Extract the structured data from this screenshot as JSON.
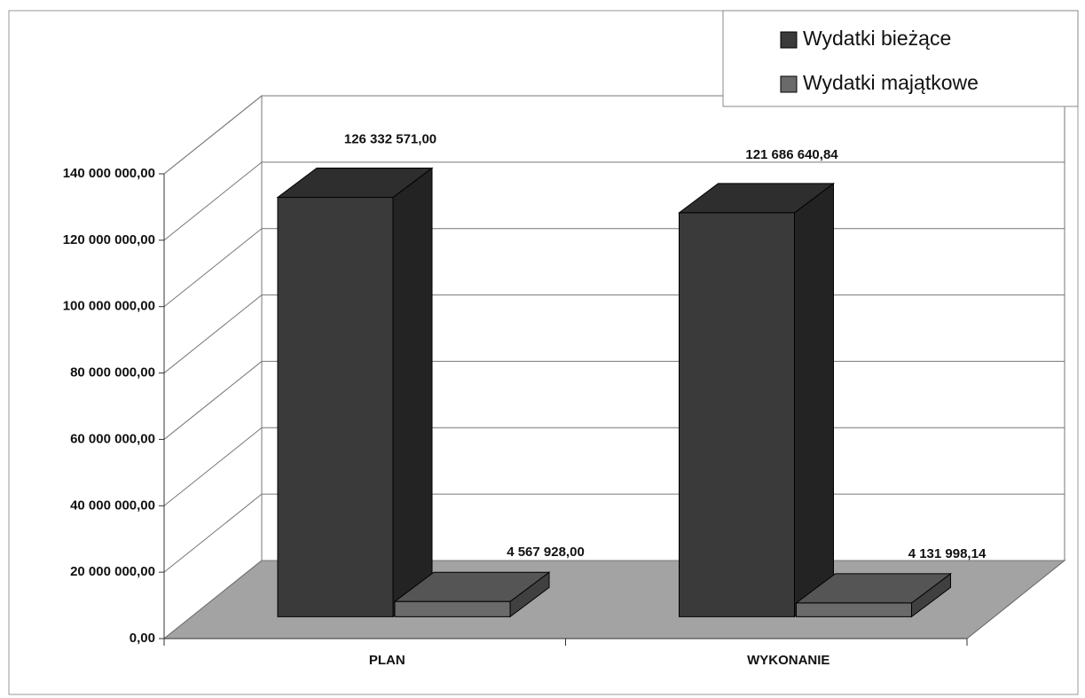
{
  "chart_data": {
    "type": "bar3d",
    "categories": [
      "PLAN",
      "WYKONANIE"
    ],
    "series": [
      {
        "name": "Wydatki bieżące",
        "color": "#3a3a3a",
        "values": [
          126332571.0,
          121686640.84
        ],
        "value_labels": [
          "126 332 571,00",
          "121 686 640,84"
        ]
      },
      {
        "name": "Wydatki majątkowe",
        "color": "#6a6a6a",
        "values": [
          4567928.0,
          4131998.14
        ],
        "value_labels": [
          "4 567 928,00",
          "4 131 998,14"
        ]
      }
    ],
    "ylim": [
      0,
      140000000
    ],
    "yticks": [
      {
        "value": 0,
        "label": "0,00"
      },
      {
        "value": 20000000,
        "label": "20 000 000,00"
      },
      {
        "value": 40000000,
        "label": "40 000 000,00"
      },
      {
        "value": 60000000,
        "label": "60 000 000,00"
      },
      {
        "value": 80000000,
        "label": "80 000 000,00"
      },
      {
        "value": 100000000,
        "label": "100 000 000,00"
      },
      {
        "value": 120000000,
        "label": "120 000 000,00"
      },
      {
        "value": 140000000,
        "label": "140 000 000,00"
      }
    ],
    "grid": true
  }
}
